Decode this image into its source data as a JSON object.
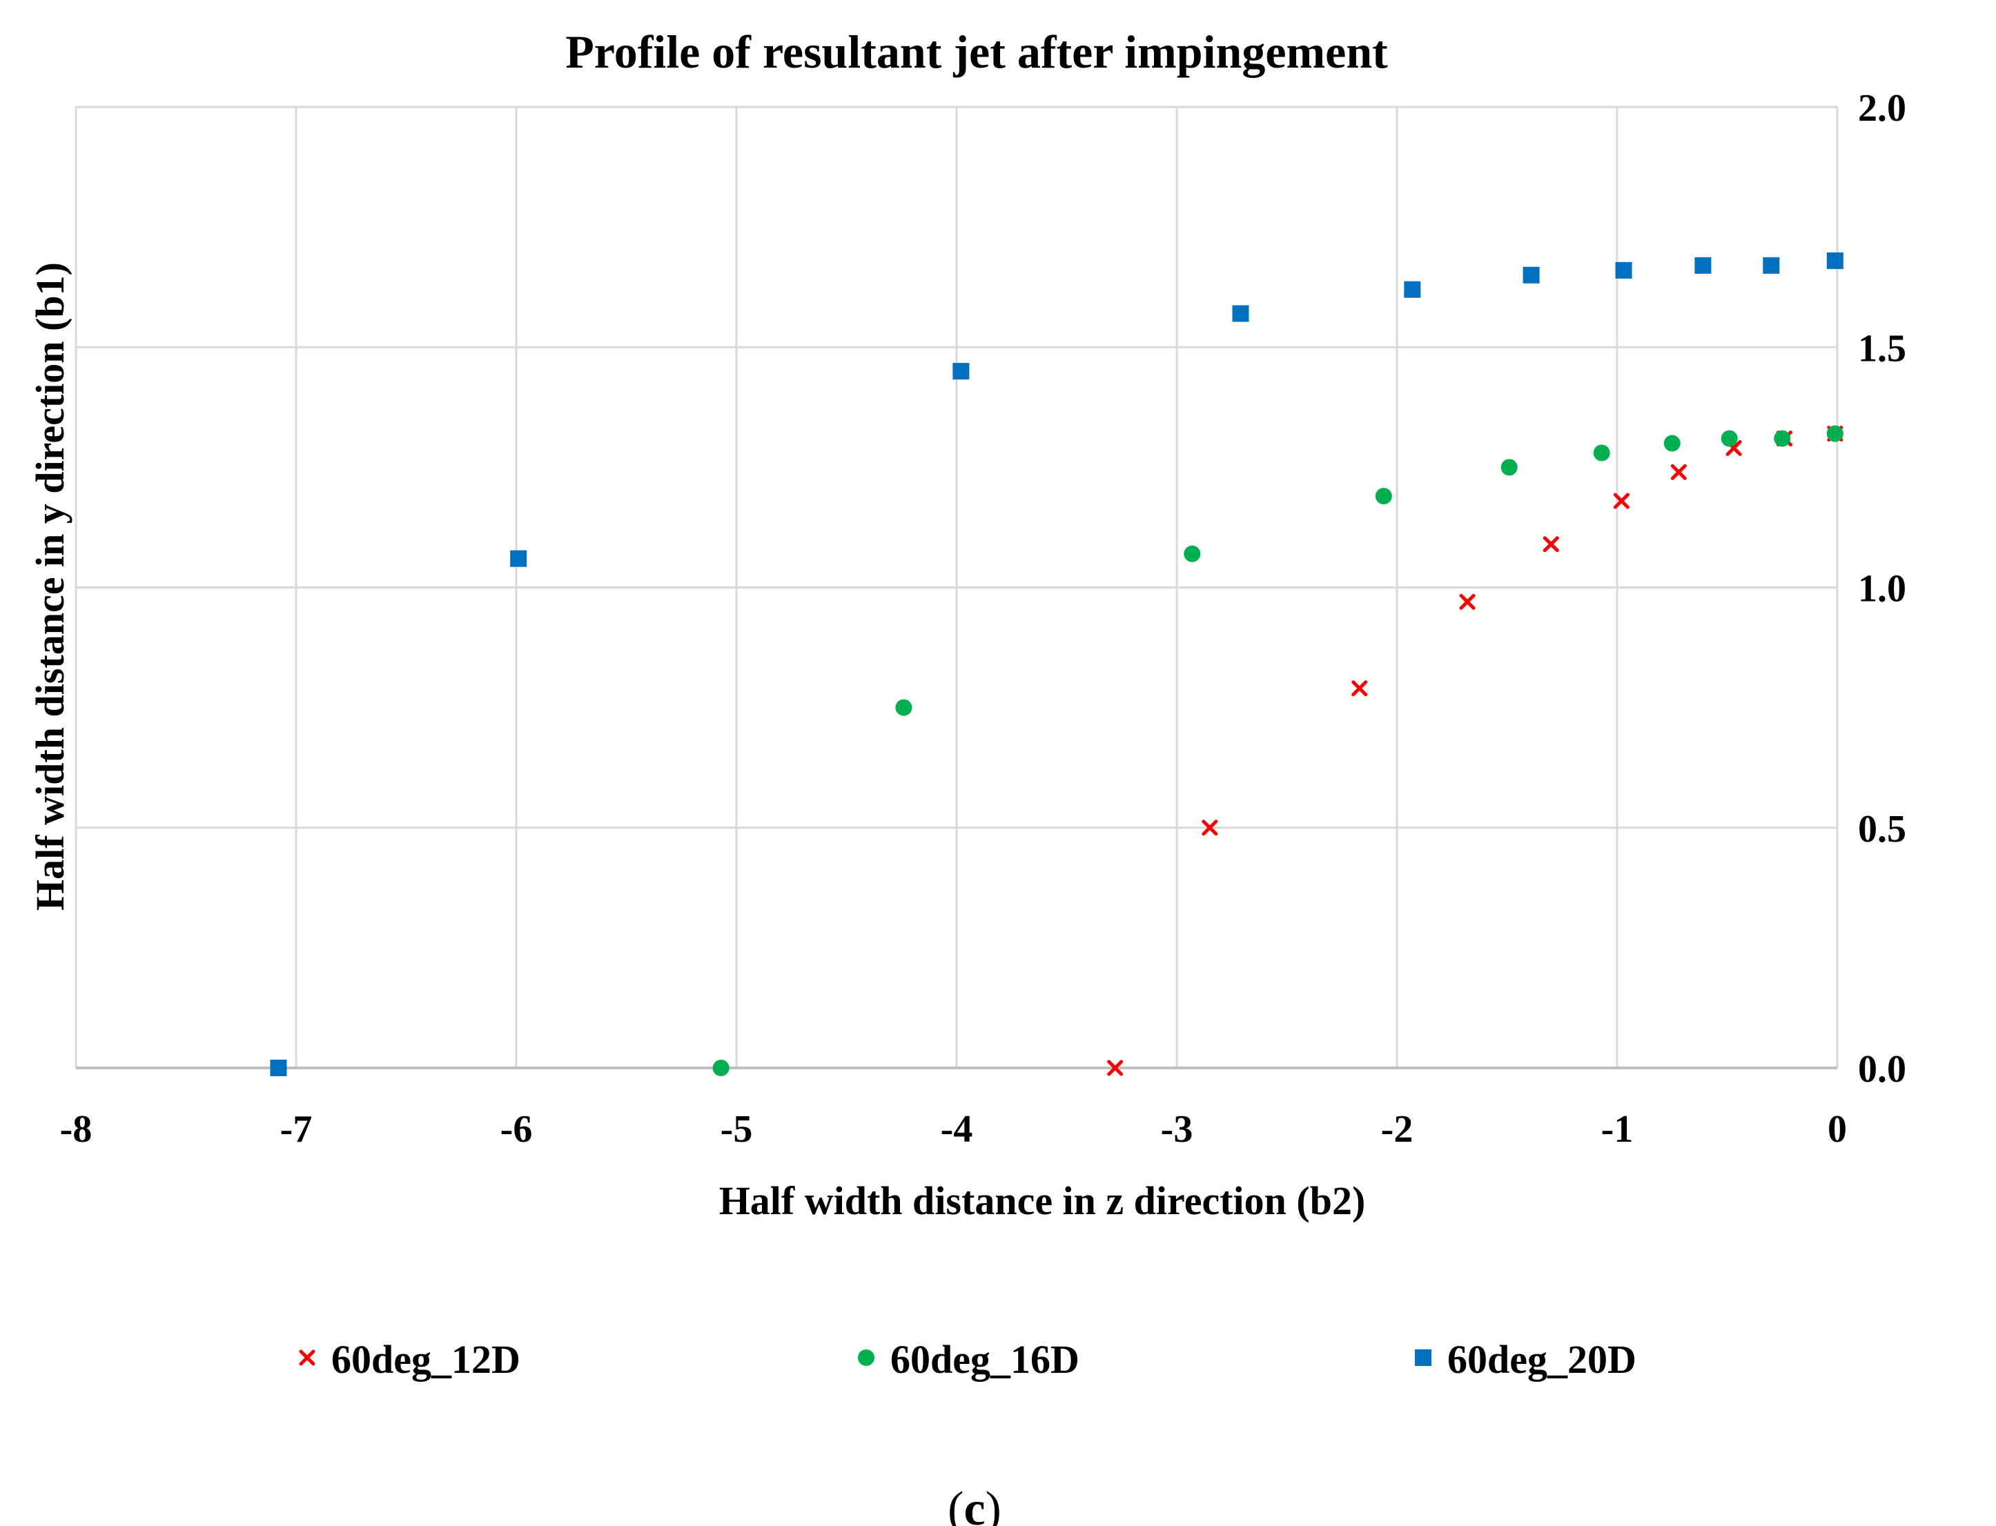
{
  "chart_data": {
    "type": "scatter",
    "title": "Profile of resultant jet after impingement",
    "xlabel": "Half width distance in z direction (b2)",
    "ylabel": "Half width distance in y direction (b1)",
    "xlim": [
      -8,
      0
    ],
    "ylim": [
      0,
      2.0
    ],
    "x_ticks": [
      -8,
      -7,
      -6,
      -5,
      -4,
      -3,
      -2,
      -1,
      0
    ],
    "x_tick_labels": [
      "-8",
      "-7",
      "-6",
      "-5",
      "-4",
      "-3",
      "-2",
      "-1",
      "0"
    ],
    "y_ticks": [
      0,
      0.5,
      1.0,
      1.5,
      2.0
    ],
    "y_tick_labels": [
      "0.0",
      "0.5",
      "1.0",
      "1.5",
      "2.0"
    ],
    "y_axis_side": "right",
    "grid": true,
    "legend_position": "bottom",
    "series": [
      {
        "name": "60deg_12D",
        "marker": "x",
        "color": "#ff0000",
        "x": [
          -3.28,
          -2.85,
          -2.17,
          -1.68,
          -1.3,
          -0.98,
          -0.72,
          -0.47,
          -0.24,
          -0.01
        ],
        "y": [
          0.0,
          0.5,
          0.79,
          0.97,
          1.09,
          1.18,
          1.24,
          1.29,
          1.31,
          1.32
        ]
      },
      {
        "name": "60deg_16D",
        "marker": "circle",
        "color": "#00b050",
        "x": [
          -5.07,
          -4.24,
          -2.93,
          -2.06,
          -1.49,
          -1.07,
          -0.75,
          -0.49,
          -0.25,
          -0.01
        ],
        "y": [
          0.0,
          0.75,
          1.07,
          1.19,
          1.25,
          1.28,
          1.3,
          1.31,
          1.31,
          1.32
        ]
      },
      {
        "name": "60deg_20D",
        "marker": "square",
        "color": "#0070c0",
        "x": [
          -7.08,
          -5.99,
          -3.98,
          -2.71,
          -1.93,
          -1.39,
          -0.97,
          -0.61,
          -0.3,
          -0.01
        ],
        "y": [
          0.0,
          1.06,
          1.45,
          1.57,
          1.62,
          1.65,
          1.66,
          1.67,
          1.67,
          1.68
        ]
      }
    ]
  },
  "panel_label": {
    "open": "(",
    "letter": "c",
    "close": ")"
  }
}
